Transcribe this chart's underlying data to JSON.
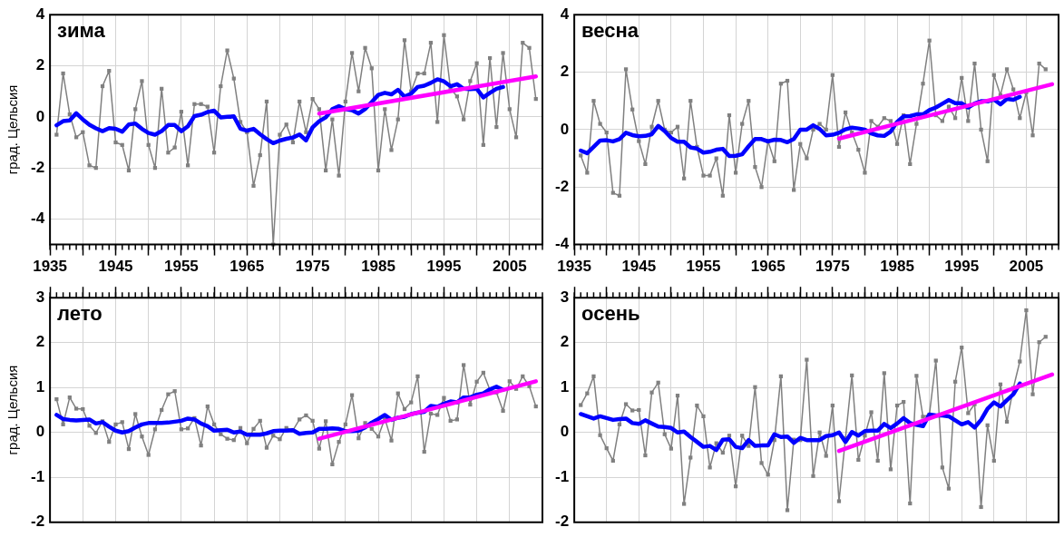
{
  "chart_data": [
    {
      "type": "line",
      "title": "зима",
      "ylabel": "град. Цельсия",
      "xlim": [
        1935,
        2010
      ],
      "xticks": [
        1935,
        {
          "value": 1940,
          "label": null
        },
        1945,
        {
          "value": 1950,
          "label": null
        },
        1955,
        {
          "value": 1960,
          "label": null
        },
        1965,
        {
          "value": 1970,
          "label": null
        },
        1975,
        {
          "value": 1980,
          "label": null
        },
        1985,
        {
          "value": 1990,
          "label": null
        },
        1995,
        {
          "value": 2000,
          "label": null
        },
        2005
      ],
      "ylim": [
        -5,
        4
      ],
      "yticks": [
        -4,
        -2,
        0,
        2,
        4
      ],
      "grid": true,
      "x": [
        1936,
        1937,
        1938,
        1939,
        1940,
        1941,
        1942,
        1943,
        1944,
        1945,
        1946,
        1947,
        1948,
        1949,
        1950,
        1951,
        1952,
        1953,
        1954,
        1955,
        1956,
        1957,
        1958,
        1959,
        1960,
        1961,
        1962,
        1963,
        1964,
        1965,
        1966,
        1967,
        1968,
        1969,
        1970,
        1971,
        1972,
        1973,
        1974,
        1975,
        1976,
        1977,
        1978,
        1979,
        1980,
        1981,
        1982,
        1983,
        1984,
        1985,
        1986,
        1987,
        1988,
        1989,
        1990,
        1991,
        1992,
        1993,
        1994,
        1995,
        1996,
        1997,
        1998,
        1999,
        2000,
        2001,
        2002,
        2003,
        2004,
        2005,
        2006,
        2007,
        2008,
        2009
      ],
      "series": [
        {
          "type": "line",
          "marker": "square",
          "color": "#808080",
          "values": [
            -0.7,
            1.7,
            0.1,
            -0.8,
            -0.6,
            -1.9,
            -2.0,
            1.2,
            1.8,
            -1.0,
            -1.1,
            -2.1,
            0.3,
            1.4,
            -1.1,
            -2.0,
            1.1,
            -1.4,
            -1.2,
            0.2,
            -1.9,
            0.5,
            0.5,
            0.4,
            -1.4,
            1.2,
            2.6,
            1.5,
            -0.2,
            -0.6,
            -2.7,
            -1.5,
            0.6,
            -5.0,
            -0.7,
            -0.3,
            -1.0,
            0.6,
            -0.6,
            0.7,
            0.3,
            -2.1,
            -0.1,
            -2.3,
            0.6,
            2.5,
            1.0,
            2.7,
            1.9,
            -2.1,
            0.3,
            -1.3,
            -0.1,
            3.0,
            1.0,
            1.7,
            1.7,
            2.9,
            -0.2,
            3.2,
            1.1,
            0.8,
            -0.1,
            1.4,
            2.1,
            -1.1,
            2.3,
            -0.4,
            2.5,
            0.3,
            -0.8,
            2.9,
            2.7,
            0.7
          ]
        },
        {
          "type": "line",
          "marker": "none",
          "color": "#0000ff",
          "x": [
            1936,
            1937,
            1938,
            1939,
            1940,
            1941,
            1942,
            1943,
            1944,
            1945,
            1946,
            1947,
            1948,
            1949,
            1950,
            1951,
            1952,
            1953,
            1954,
            1955,
            1956,
            1957,
            1958,
            1959,
            1960,
            1961,
            1962,
            1963,
            1964,
            1965,
            1966,
            1967,
            1968,
            1969,
            1970,
            1971,
            1972,
            1973,
            1974,
            1975,
            1976,
            1977,
            1978,
            1979,
            1980,
            1981,
            1982,
            1983,
            1984,
            1985,
            1986,
            1987,
            1988,
            1989,
            1990,
            1991,
            1992,
            1993,
            1994,
            1995,
            1996,
            1997,
            1998,
            1999,
            2000,
            2001,
            2002,
            2003,
            2004
          ],
          "values": [
            -0.33,
            -0.17,
            -0.14,
            0.14,
            -0.1,
            -0.31,
            -0.45,
            -0.56,
            -0.44,
            -0.47,
            -0.58,
            -0.3,
            -0.26,
            -0.47,
            -0.63,
            -0.7,
            -0.56,
            -0.32,
            -0.32,
            -0.56,
            -0.37,
            0.03,
            0.08,
            0.19,
            0.24,
            -0.02,
            0.0,
            0.02,
            -0.46,
            -0.54,
            -0.47,
            -0.68,
            -0.87,
            -1.03,
            -0.93,
            -0.86,
            -0.81,
            -0.69,
            -0.92,
            -0.41,
            -0.17,
            -0.02,
            0.3,
            0.42,
            0.3,
            0.26,
            0.13,
            0.31,
            0.58,
            0.86,
            0.94,
            0.88,
            1.06,
            0.79,
            0.91,
            1.17,
            1.22,
            1.33,
            1.47,
            1.39,
            1.2,
            1.28,
            1.1,
            1.09,
            1.1,
            0.76,
            0.94,
            1.1,
            1.17
          ]
        },
        {
          "type": "line",
          "marker": "none",
          "color": "#ff00ff",
          "x": [
            1976,
            2009
          ],
          "values": [
            0.13,
            1.58
          ]
        }
      ]
    },
    {
      "type": "line",
      "title": "весна",
      "xlim": [
        1935,
        2010
      ],
      "xticks": [
        1935,
        {
          "value": 1940,
          "label": null
        },
        1945,
        {
          "value": 1950,
          "label": null
        },
        1955,
        {
          "value": 1960,
          "label": null
        },
        1965,
        {
          "value": 1970,
          "label": null
        },
        1975,
        {
          "value": 1980,
          "label": null
        },
        1985,
        {
          "value": 1990,
          "label": null
        },
        1995,
        {
          "value": 2000,
          "label": null
        },
        2005
      ],
      "ylim": [
        -4,
        4
      ],
      "yticks": [
        -4,
        -2,
        0,
        2,
        4
      ],
      "grid": true,
      "x": [
        1936,
        1937,
        1938,
        1939,
        1940,
        1941,
        1942,
        1943,
        1944,
        1945,
        1946,
        1947,
        1948,
        1949,
        1950,
        1951,
        1952,
        1953,
        1954,
        1955,
        1956,
        1957,
        1958,
        1959,
        1960,
        1961,
        1962,
        1963,
        1964,
        1965,
        1966,
        1967,
        1968,
        1969,
        1970,
        1971,
        1972,
        1973,
        1974,
        1975,
        1976,
        1977,
        1978,
        1979,
        1980,
        1981,
        1982,
        1983,
        1984,
        1985,
        1986,
        1987,
        1988,
        1989,
        1990,
        1991,
        1992,
        1993,
        1994,
        1995,
        1996,
        1997,
        1998,
        1999,
        2000,
        2001,
        2002,
        2003,
        2004,
        2005,
        2006,
        2007,
        2008
      ],
      "series": [
        {
          "type": "line",
          "marker": "square",
          "color": "#808080",
          "values": [
            -0.9,
            -1.5,
            1.0,
            0.2,
            -0.1,
            -2.2,
            -2.3,
            2.1,
            0.7,
            -0.4,
            -1.2,
            0.1,
            1.0,
            0.0,
            -0.1,
            0.1,
            -1.7,
            1.0,
            -0.6,
            -1.6,
            -1.6,
            -1.0,
            -2.3,
            0.5,
            -1.5,
            0.2,
            1.0,
            -1.3,
            -2.0,
            -0.4,
            -1.1,
            1.6,
            1.7,
            -2.1,
            -0.5,
            -1.0,
            0.0,
            0.2,
            0.0,
            1.9,
            -0.6,
            0.6,
            -0.1,
            -0.7,
            -1.5,
            0.3,
            0.1,
            0.4,
            0.3,
            -0.5,
            0.5,
            -1.2,
            0.2,
            1.6,
            3.1,
            0.5,
            0.3,
            0.8,
            0.4,
            1.8,
            0.3,
            2.3,
            0.0,
            -1.1,
            1.9,
            1.2,
            2.1,
            1.4,
            0.4,
            1.3,
            -0.2,
            2.3,
            2.1
          ]
        },
        {
          "type": "line",
          "marker": "none",
          "color": "#0000ff",
          "x": [
            1936,
            1937,
            1938,
            1939,
            1940,
            1941,
            1942,
            1943,
            1944,
            1945,
            1946,
            1947,
            1948,
            1949,
            1950,
            1951,
            1952,
            1953,
            1954,
            1955,
            1956,
            1957,
            1958,
            1959,
            1960,
            1961,
            1962,
            1963,
            1964,
            1965,
            1966,
            1967,
            1968,
            1969,
            1970,
            1971,
            1972,
            1973,
            1974,
            1975,
            1976,
            1977,
            1978,
            1979,
            1980,
            1981,
            1982,
            1983,
            1984,
            1985,
            1986,
            1987,
            1988,
            1989,
            1990,
            1991,
            1992,
            1993,
            1994,
            1995,
            1996,
            1997,
            1998,
            1999,
            2000,
            2001,
            2002,
            2003,
            2004
          ],
          "values": [
            -0.73,
            -0.82,
            -0.6,
            -0.38,
            -0.37,
            -0.41,
            -0.33,
            -0.11,
            -0.19,
            -0.23,
            -0.22,
            -0.16,
            0.13,
            -0.05,
            -0.29,
            -0.42,
            -0.42,
            -0.62,
            -0.66,
            -0.8,
            -0.77,
            -0.7,
            -0.67,
            -0.92,
            -0.91,
            -0.86,
            -0.58,
            -0.33,
            -0.33,
            -0.41,
            -0.35,
            -0.36,
            -0.44,
            -0.33,
            0.0,
            0.0,
            0.15,
            0.02,
            -0.2,
            -0.18,
            -0.11,
            0.01,
            0.07,
            0.04,
            0.0,
            -0.13,
            -0.2,
            -0.22,
            -0.07,
            0.27,
            0.46,
            0.47,
            0.53,
            0.53,
            0.68,
            0.77,
            0.9,
            1.03,
            0.92,
            0.92,
            0.77,
            0.91,
            0.99,
            0.98,
            1.05,
            0.88,
            1.07,
            1.04,
            1.14
          ]
        },
        {
          "type": "line",
          "marker": "none",
          "color": "#ff00ff",
          "x": [
            1976,
            2009
          ],
          "values": [
            -0.31,
            1.58
          ]
        }
      ]
    },
    {
      "type": "line",
      "title": "лето",
      "ylabel": "град. Цельсия",
      "tick_labels": "y",
      "xlim": [
        1935,
        2010
      ],
      "xticks": [
        1935,
        1940,
        1945,
        1950,
        1955,
        1960,
        1965,
        1970,
        1975,
        1980,
        1985,
        1990,
        1995,
        2000,
        2005
      ],
      "ylim": [
        -2,
        3
      ],
      "yticks": [
        -2,
        -1,
        0,
        1,
        2,
        3
      ],
      "grid": true,
      "x": [
        1936,
        1937,
        1938,
        1939,
        1940,
        1941,
        1942,
        1943,
        1944,
        1945,
        1946,
        1947,
        1948,
        1949,
        1950,
        1951,
        1952,
        1953,
        1954,
        1955,
        1956,
        1957,
        1958,
        1959,
        1960,
        1961,
        1962,
        1963,
        1964,
        1965,
        1966,
        1967,
        1968,
        1969,
        1970,
        1971,
        1972,
        1973,
        1974,
        1975,
        1976,
        1977,
        1978,
        1979,
        1980,
        1981,
        1982,
        1983,
        1984,
        1985,
        1986,
        1987,
        1988,
        1989,
        1990,
        1991,
        1992,
        1993,
        1994,
        1995,
        1996,
        1997,
        1998,
        1999,
        2000,
        2001,
        2002,
        2003,
        2004,
        2005,
        2006,
        2007,
        2008,
        2009
      ],
      "series": [
        {
          "type": "line",
          "marker": "square",
          "color": "#808080",
          "values": [
            0.74,
            0.18,
            0.78,
            0.53,
            0.52,
            0.15,
            -0.01,
            0.25,
            -0.21,
            0.18,
            0.23,
            -0.37,
            0.41,
            -0.09,
            -0.5,
            0.07,
            0.5,
            0.85,
            0.92,
            0.07,
            0.09,
            0.32,
            -0.29,
            0.58,
            0.18,
            -0.04,
            -0.14,
            -0.17,
            0.1,
            -0.24,
            0.08,
            0.26,
            -0.34,
            -0.07,
            -0.15,
            0.1,
            0.05,
            0.29,
            0.38,
            0.26,
            -0.36,
            0.25,
            -0.71,
            -0.21,
            0.18,
            0.83,
            -0.13,
            0.21,
            0.08,
            -0.09,
            0.31,
            -0.18,
            0.87,
            0.52,
            0.67,
            1.25,
            -0.43,
            0.42,
            0.39,
            0.77,
            0.26,
            0.29,
            1.5,
            0.62,
            1.13,
            1.33,
            0.95,
            0.89,
            0.48,
            1.14,
            0.97,
            1.25,
            1.03,
            0.58
          ]
        },
        {
          "type": "line",
          "marker": "none",
          "color": "#0000ff",
          "x": [
            1936,
            1937,
            1938,
            1939,
            1940,
            1941,
            1942,
            1943,
            1944,
            1945,
            1946,
            1947,
            1948,
            1949,
            1950,
            1951,
            1952,
            1953,
            1954,
            1955,
            1956,
            1957,
            1958,
            1959,
            1960,
            1961,
            1962,
            1963,
            1964,
            1965,
            1966,
            1967,
            1968,
            1969,
            1970,
            1971,
            1972,
            1973,
            1974,
            1975,
            1976,
            1977,
            1978,
            1979,
            1980,
            1981,
            1982,
            1983,
            1984,
            1985,
            1986,
            1987,
            1988,
            1989,
            1990,
            1991,
            1992,
            1993,
            1994,
            1995,
            1996,
            1997,
            1998,
            1999,
            2000,
            2001,
            2002,
            2003,
            2004
          ],
          "values": [
            0.39,
            0.3,
            0.28,
            0.27,
            0.28,
            0.29,
            0.2,
            0.23,
            0.13,
            0.04,
            0.0,
            0.03,
            0.11,
            0.18,
            0.21,
            0.21,
            0.21,
            0.22,
            0.24,
            0.26,
            0.31,
            0.29,
            0.2,
            0.14,
            0.04,
            0.05,
            0.06,
            0.0,
            0.02,
            -0.05,
            -0.05,
            -0.05,
            -0.02,
            0.03,
            0.04,
            0.04,
            0.05,
            -0.03,
            -0.01,
            0.0,
            0.08,
            0.08,
            0.09,
            0.08,
            0.03,
            0.03,
            0.04,
            0.11,
            0.22,
            0.3,
            0.39,
            0.28,
            0.33,
            0.35,
            0.41,
            0.44,
            0.46,
            0.59,
            0.57,
            0.64,
            0.69,
            0.67,
            0.78,
            0.78,
            0.84,
            0.87,
            0.96,
            1.02,
            0.95
          ]
        },
        {
          "type": "line",
          "marker": "none",
          "color": "#ff00ff",
          "x": [
            1976,
            2009
          ],
          "values": [
            -0.14,
            1.14
          ]
        }
      ]
    },
    {
      "type": "line",
      "title": "осень",
      "tick_labels": "y",
      "xlim": [
        1935,
        2010
      ],
      "xticks": [
        1935,
        1940,
        1945,
        1950,
        1955,
        1960,
        1965,
        1970,
        1975,
        1980,
        1985,
        1990,
        1995,
        2000,
        2005
      ],
      "ylim": [
        -2,
        3
      ],
      "yticks": [
        -2,
        -1,
        0,
        1,
        2,
        3
      ],
      "grid": true,
      "x": [
        1936,
        1937,
        1938,
        1939,
        1940,
        1941,
        1942,
        1943,
        1944,
        1945,
        1946,
        1947,
        1948,
        1949,
        1950,
        1951,
        1952,
        1953,
        1954,
        1955,
        1956,
        1957,
        1958,
        1959,
        1960,
        1961,
        1962,
        1963,
        1964,
        1965,
        1966,
        1967,
        1968,
        1969,
        1970,
        1971,
        1972,
        1973,
        1974,
        1975,
        1976,
        1977,
        1978,
        1979,
        1980,
        1981,
        1982,
        1983,
        1984,
        1985,
        1986,
        1987,
        1988,
        1989,
        1990,
        1991,
        1992,
        1993,
        1994,
        1995,
        1996,
        1997,
        1998,
        1999,
        2000,
        2001,
        2002,
        2003,
        2004,
        2005,
        2006,
        2007,
        2008
      ],
      "series": [
        {
          "type": "line",
          "marker": "square",
          "color": "#808080",
          "values": [
            0.61,
            0.87,
            1.25,
            -0.06,
            -0.35,
            -0.63,
            0.18,
            0.63,
            0.49,
            0.5,
            -0.51,
            0.89,
            1.11,
            -0.04,
            -0.36,
            0.82,
            -1.59,
            -0.56,
            0.6,
            0.36,
            -0.78,
            -0.24,
            -0.45,
            -0.07,
            -1.2,
            -0.07,
            -0.3,
            1.01,
            -0.68,
            -0.94,
            -0.17,
            1.25,
            -1.73,
            -0.16,
            -0.17,
            1.62,
            -0.97,
            0.0,
            -0.52,
            0.6,
            -1.53,
            -0.13,
            1.27,
            -0.61,
            -0.07,
            0.45,
            -0.63,
            1.32,
            -0.82,
            0.6,
            0.68,
            -1.58,
            1.26,
            0.35,
            0.4,
            1.6,
            -0.78,
            -1.25,
            1.13,
            1.89,
            0.43,
            0.63,
            -1.66,
            0.16,
            -0.63,
            1.07,
            0.24,
            0.99,
            1.58,
            2.72,
            0.85,
            2.01,
            2.13
          ]
        },
        {
          "type": "line",
          "marker": "none",
          "color": "#0000ff",
          "x": [
            1936,
            1937,
            1938,
            1939,
            1940,
            1941,
            1942,
            1943,
            1944,
            1945,
            1946,
            1947,
            1948,
            1949,
            1950,
            1951,
            1952,
            1953,
            1954,
            1955,
            1956,
            1957,
            1958,
            1959,
            1960,
            1961,
            1962,
            1963,
            1964,
            1965,
            1966,
            1967,
            1968,
            1969,
            1970,
            1971,
            1972,
            1973,
            1974,
            1975,
            1976,
            1977,
            1978,
            1979,
            1980,
            1981,
            1982,
            1983,
            1984,
            1985,
            1986,
            1987,
            1988,
            1989,
            1990,
            1991,
            1992,
            1993,
            1994,
            1995,
            1996,
            1997,
            1998,
            1999,
            2000,
            2001,
            2002,
            2003,
            2004
          ],
          "values": [
            0.41,
            0.36,
            0.31,
            0.36,
            0.32,
            0.28,
            0.3,
            0.31,
            0.21,
            0.19,
            0.27,
            0.2,
            0.13,
            0.12,
            0.1,
            0.0,
            0.02,
            -0.1,
            -0.21,
            -0.32,
            -0.3,
            -0.39,
            -0.16,
            -0.15,
            -0.32,
            -0.35,
            -0.17,
            -0.3,
            -0.29,
            -0.29,
            -0.04,
            -0.1,
            -0.09,
            -0.23,
            -0.12,
            -0.17,
            -0.17,
            -0.17,
            -0.08,
            -0.06,
            0.0,
            -0.21,
            0.01,
            -0.07,
            0.03,
            0.04,
            0.04,
            0.19,
            0.1,
            0.2,
            0.32,
            0.21,
            0.17,
            0.14,
            0.4,
            0.38,
            0.38,
            0.36,
            0.27,
            0.18,
            0.23,
            0.11,
            0.28,
            0.53,
            0.67,
            0.58,
            0.72,
            0.85,
            1.09
          ]
        },
        {
          "type": "line",
          "marker": "none",
          "color": "#ff00ff",
          "x": [
            1976,
            2009
          ],
          "values": [
            -0.41,
            1.29
          ]
        }
      ]
    }
  ]
}
